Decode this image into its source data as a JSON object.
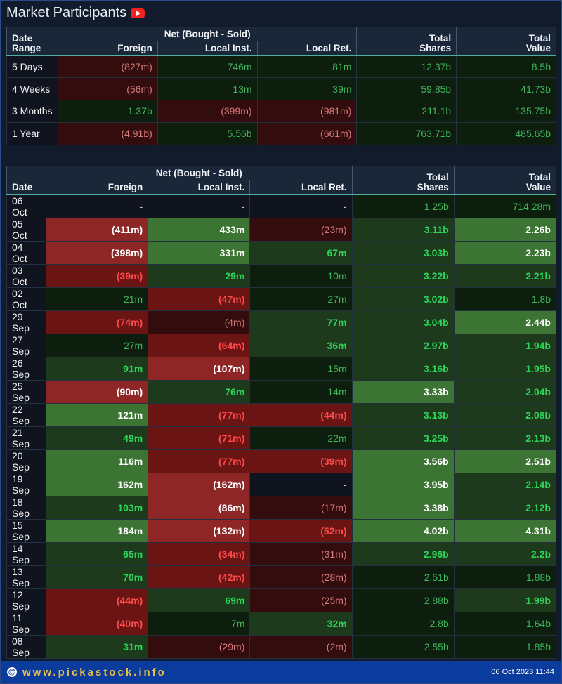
{
  "header": {
    "title": "Market Participants"
  },
  "summary_table": {
    "headers": {
      "date": "Date Range",
      "net": "Net (Bought - Sold)",
      "foreign": "Foreign",
      "local_inst": "Local Inst.",
      "local_ret": "Local Ret.",
      "total_shares": "Total Shares",
      "total_value": "Total Value"
    },
    "rows": [
      [
        "5 Days",
        "(827m)",
        "746m",
        "81m",
        "12.37b",
        "8.5b"
      ],
      [
        "4 Weeks",
        "(56m)",
        "13m",
        "39m",
        "59.85b",
        "41.73b"
      ],
      [
        "3 Months",
        "1.37b",
        "(399m)",
        "(981m)",
        "211.1b",
        "135.75b"
      ],
      [
        "1 Year",
        "(4.91b)",
        "5.56b",
        "(661m)",
        "763.71b",
        "485.65b"
      ]
    ]
  },
  "daily_table": {
    "headers": {
      "date": "Date",
      "net": "Net (Bought - Sold)",
      "foreign": "Foreign",
      "local_inst": "Local Inst.",
      "local_ret": "Local Ret.",
      "total_shares": "Total Shares",
      "total_value": "Total Value"
    },
    "rows": [
      [
        "06 Oct",
        "-",
        "-",
        "-",
        "1.25b",
        "714.28m"
      ],
      [
        "05 Oct",
        "(411m)",
        "433m",
        "(23m)",
        "3.11b",
        "2.26b"
      ],
      [
        "04 Oct",
        "(398m)",
        "331m",
        "67m",
        "3.03b",
        "2.23b"
      ],
      [
        "03 Oct",
        "(39m)",
        "29m",
        "10m",
        "3.22b",
        "2.21b"
      ],
      [
        "02 Oct",
        "21m",
        "(47m)",
        "27m",
        "3.02b",
        "1.8b"
      ],
      [
        "29 Sep",
        "(74m)",
        "(4m)",
        "77m",
        "3.04b",
        "2.44b"
      ],
      [
        "27 Sep",
        "27m",
        "(64m)",
        "36m",
        "2.97b",
        "1.94b"
      ],
      [
        "26 Sep",
        "91m",
        "(107m)",
        "15m",
        "3.16b",
        "1.95b"
      ],
      [
        "25 Sep",
        "(90m)",
        "76m",
        "14m",
        "3.33b",
        "2.04b"
      ],
      [
        "22 Sep",
        "121m",
        "(77m)",
        "(44m)",
        "3.13b",
        "2.08b"
      ],
      [
        "21 Sep",
        "49m",
        "(71m)",
        "22m",
        "3.25b",
        "2.13b"
      ],
      [
        "20 Sep",
        "116m",
        "(77m)",
        "(39m)",
        "3.56b",
        "2.51b"
      ],
      [
        "19 Sep",
        "162m",
        "(162m)",
        "-",
        "3.95b",
        "2.14b"
      ],
      [
        "18 Sep",
        "103m",
        "(86m)",
        "(17m)",
        "3.38b",
        "2.12b"
      ],
      [
        "15 Sep",
        "184m",
        "(132m)",
        "(52m)",
        "4.02b",
        "4.31b"
      ],
      [
        "14 Sep",
        "65m",
        "(34m)",
        "(31m)",
        "2.96b",
        "2.2b"
      ],
      [
        "13 Sep",
        "70m",
        "(42m)",
        "(28m)",
        "2.51b",
        "1.88b"
      ],
      [
        "12 Sep",
        "(44m)",
        "69m",
        "(25m)",
        "2.88b",
        "1.99b"
      ],
      [
        "11 Sep",
        "(40m)",
        "7m",
        "32m",
        "2.8b",
        "1.64b"
      ],
      [
        "08 Sep",
        "31m",
        "(29m)",
        "(2m)",
        "2.55b",
        "1.85b"
      ]
    ]
  },
  "footer": {
    "site": "www.pickastock.info",
    "timestamp": "06 Oct 2023 11:44"
  }
}
